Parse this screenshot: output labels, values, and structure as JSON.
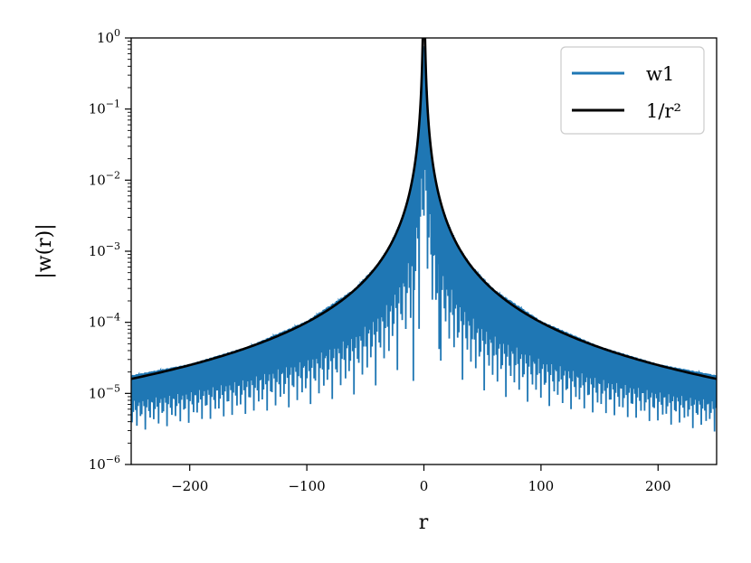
{
  "chart_data": {
    "type": "line",
    "xlabel": "r",
    "ylabel": "|w(r)|",
    "xlim": [
      -250,
      250
    ],
    "ylim": [
      1e-06,
      1
    ],
    "yscale": "log",
    "grid": false,
    "legend_position": "top-right",
    "x_ticks": [
      -200,
      -100,
      0,
      100,
      200
    ],
    "x_tick_labels": [
      "−200",
      "−100",
      "0",
      "100",
      "200"
    ],
    "y_ticks": [
      1e-06,
      1e-05,
      0.0001,
      0.001,
      0.01,
      0.1,
      1
    ],
    "y_tick_labels": [
      {
        "base": "10",
        "exp": "−6"
      },
      {
        "base": "10",
        "exp": "−5"
      },
      {
        "base": "10",
        "exp": "−4"
      },
      {
        "base": "10",
        "exp": "−3"
      },
      {
        "base": "10",
        "exp": "−2"
      },
      {
        "base": "10",
        "exp": "−1"
      },
      {
        "base": "10",
        "exp": "0"
      }
    ],
    "series": [
      {
        "name": "w1",
        "color": "#1f77b4",
        "style": "oscillating",
        "envelope_upper": {
          "r": [
            -250,
            -200,
            -150,
            -100,
            -60,
            -40,
            -30,
            -20,
            -15,
            -12,
            -10,
            -8,
            -6,
            -4,
            -3,
            -2,
            -1,
            0,
            1,
            2,
            3,
            4,
            6,
            8,
            10,
            12,
            15,
            20,
            30,
            40,
            60,
            100,
            150,
            200,
            250
          ],
          "w": [
            1.8e-05,
            2.6e-05,
            4.6e-05,
            0.000105,
            0.00029,
            0.00065,
            0.00115,
            0.0026,
            0.0046,
            0.0072,
            0.0105,
            0.016,
            0.03,
            0.07,
            0.12,
            0.3,
            0.6,
            1.0,
            0.6,
            0.3,
            0.12,
            0.07,
            0.03,
            0.016,
            0.0105,
            0.0072,
            0.0046,
            0.0026,
            0.00115,
            0.00065,
            0.00029,
            0.000105,
            4.6e-05,
            2.6e-05,
            1.8e-05
          ]
        },
        "envelope_lower": {
          "r": [
            -250,
            -200,
            -150,
            -100,
            -60,
            -40,
            -30,
            -20,
            -10,
            0,
            10,
            20,
            30,
            40,
            60,
            100,
            150,
            200,
            250
          ],
          "w": [
            1.9e-06,
            2.3e-06,
            2.8e-06,
            3.6e-06,
            5e-06,
            7e-06,
            9e-06,
            1.3e-05,
            2e-05,
            0.0001,
            2e-05,
            1.3e-05,
            9e-06,
            7e-06,
            5e-06,
            3.6e-06,
            2.8e-06,
            2.3e-06,
            1.9e-06
          ]
        },
        "notable_dips": [
          {
            "r": -9,
            "w": 1.5e-05
          },
          {
            "r": 13,
            "w": 4.2e-05
          }
        ]
      },
      {
        "name": "1/r²",
        "color": "#000000",
        "style": "solid",
        "formula": "1/r^2",
        "r_min_abs": 0.8
      }
    ]
  }
}
